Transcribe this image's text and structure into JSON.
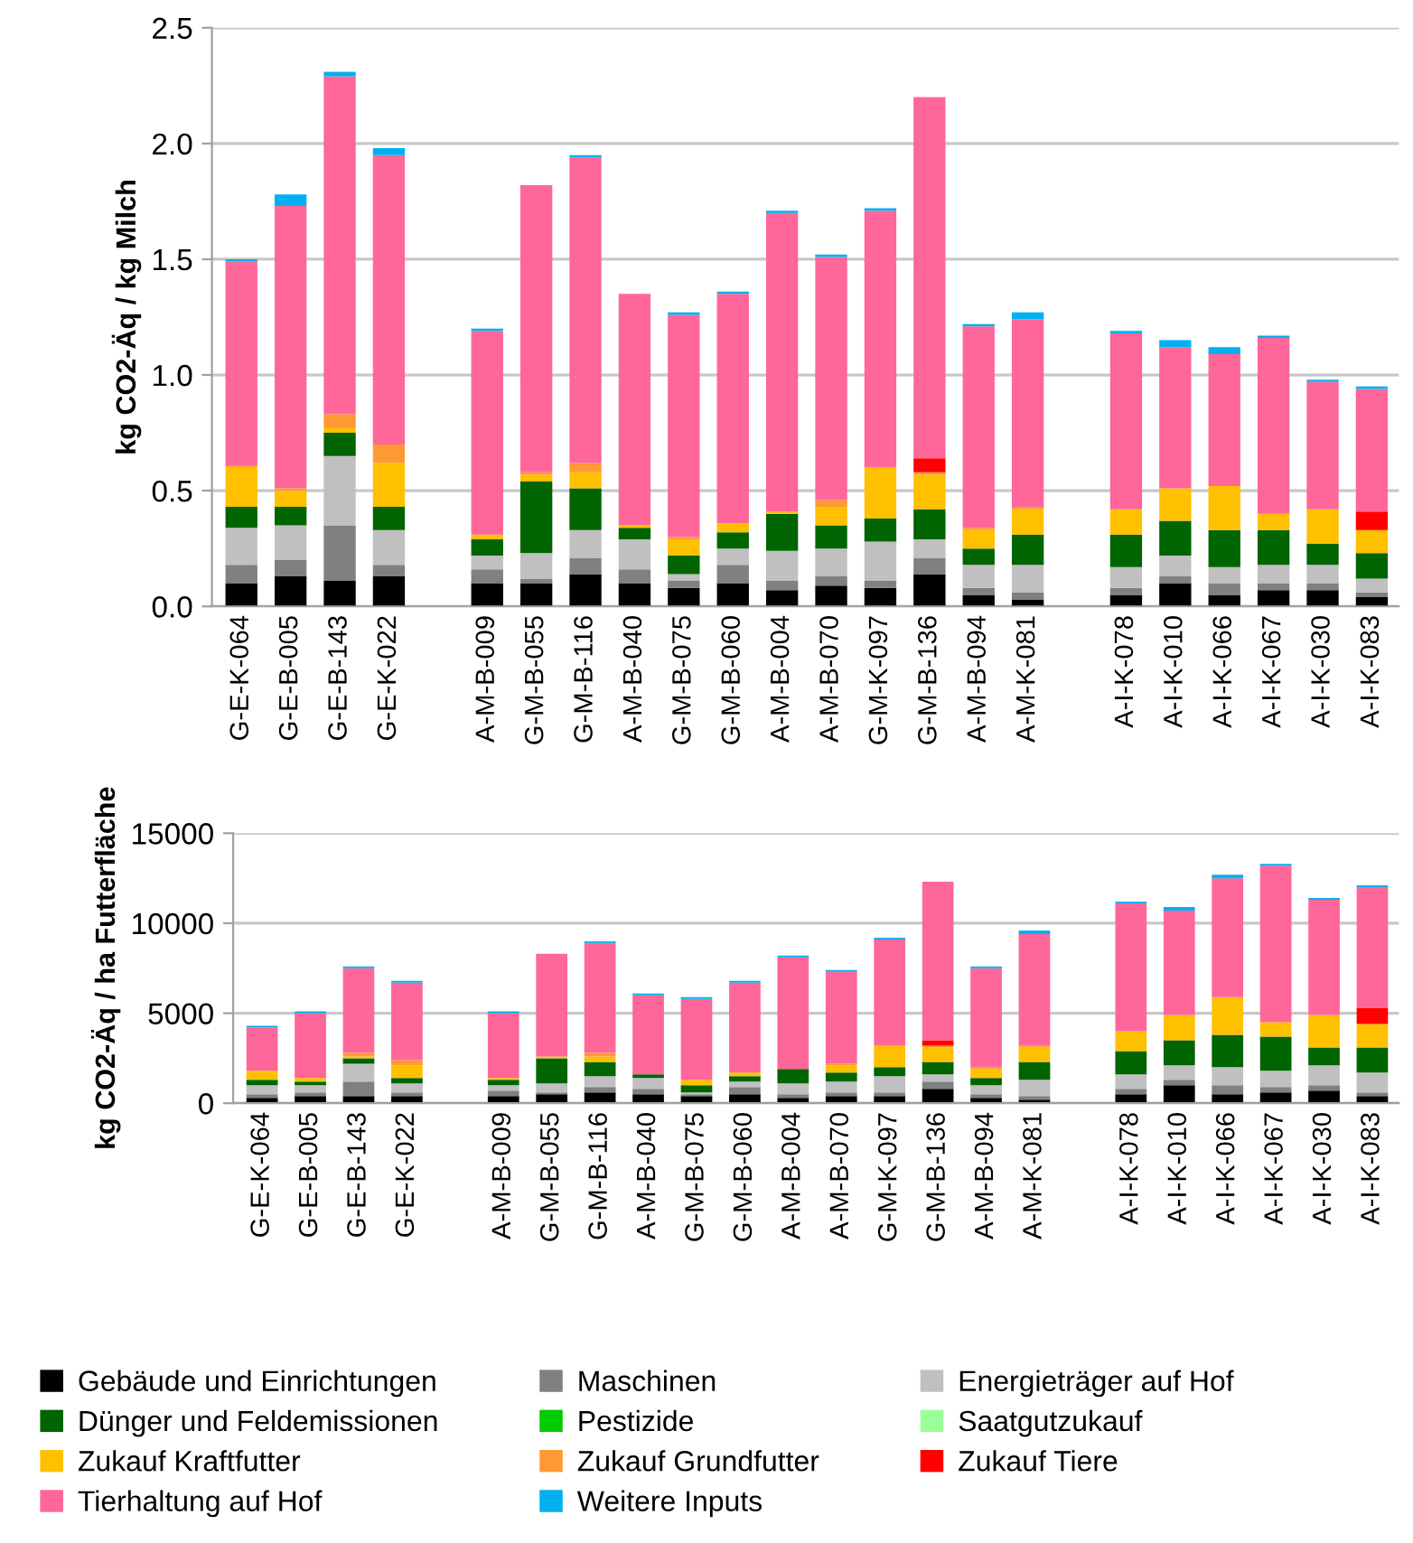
{
  "chart_data": [
    {
      "type": "bar",
      "stacked": true,
      "ylabel": "kg CO2-Äq / kg Milch",
      "grid": "y",
      "categories": [
        "G-E-K-064",
        "G-E-B-005",
        "G-E-B-143",
        "G-E-K-022",
        null,
        "A-M-B-009",
        "G-M-B-055",
        "G-M-B-116",
        "A-M-B-040",
        "G-M-B-075",
        "G-M-B-060",
        "A-M-B-004",
        "A-M-B-070",
        "G-M-K-097",
        "G-M-B-136",
        "A-M-B-094",
        "A-M-K-081",
        null,
        "A-I-K-078",
        "A-I-K-010",
        "A-I-K-066",
        "A-I-K-067",
        "A-I-K-030",
        "A-I-K-083"
      ],
      "ylim": [
        0,
        2.5
      ],
      "yticks": [
        {
          "value": 0,
          "label": "0.0"
        },
        {
          "value": 0.5,
          "label": "0.5"
        },
        {
          "value": 1,
          "label": "1.0"
        },
        {
          "value": 1.5,
          "label": "1.5"
        },
        {
          "value": 2,
          "label": "2.0"
        },
        {
          "value": 2.5,
          "label": "2.5"
        }
      ],
      "series": [
        {
          "color": "#000000",
          "values": [
            0.1,
            0.13,
            0.11,
            0.13,
            null,
            0.1,
            0.1,
            0.14,
            0.1,
            0.08,
            0.1,
            0.07,
            0.09,
            0.08,
            0.14,
            0.05,
            0.03,
            null,
            0.05,
            0.1,
            0.05,
            0.07,
            0.07,
            0.04
          ]
        },
        {
          "color": "#808080",
          "values": [
            0.08,
            0.07,
            0.24,
            0.05,
            null,
            0.06,
            0.02,
            0.07,
            0.06,
            0.03,
            0.08,
            0.04,
            0.04,
            0.03,
            0.07,
            0.03,
            0.03,
            null,
            0.03,
            0.03,
            0.05,
            0.03,
            0.03,
            0.02
          ]
        },
        {
          "color": "#c0c0c0",
          "values": [
            0.16,
            0.15,
            0.3,
            0.15,
            null,
            0.06,
            0.11,
            0.12,
            0.13,
            0.03,
            0.07,
            0.13,
            0.12,
            0.17,
            0.08,
            0.1,
            0.12,
            null,
            0.09,
            0.09,
            0.07,
            0.08,
            0.08,
            0.06
          ]
        },
        {
          "color": "#006400",
          "values": [
            0.09,
            0.08,
            0.1,
            0.1,
            null,
            0.07,
            0.31,
            0.18,
            0.05,
            0.08,
            0.07,
            0.16,
            0.1,
            0.1,
            0.13,
            0.07,
            0.13,
            null,
            0.14,
            0.15,
            0.16,
            0.15,
            0.09,
            0.11
          ]
        },
        {
          "color": "#00cc00",
          "values": [
            0,
            0,
            0,
            0,
            null,
            0,
            0,
            0,
            0,
            0,
            0,
            0,
            0,
            0,
            0,
            0,
            0,
            null,
            0,
            0,
            0,
            0,
            0,
            0
          ]
        },
        {
          "color": "#99ff99",
          "values": [
            0,
            0,
            0,
            0,
            null,
            0,
            0,
            0,
            0,
            0,
            0,
            0,
            0,
            0,
            0,
            0,
            0,
            null,
            0,
            0,
            0,
            0,
            0,
            0
          ]
        },
        {
          "color": "#ffc000",
          "values": [
            0.17,
            0.07,
            0.02,
            0.19,
            null,
            0.02,
            0.03,
            0.07,
            0.01,
            0.07,
            0.04,
            0.01,
            0.08,
            0.22,
            0.15,
            0.08,
            0.11,
            null,
            0.11,
            0.14,
            0.19,
            0.07,
            0.15,
            0.1
          ]
        },
        {
          "color": "#ff9933",
          "values": [
            0.01,
            0.01,
            0.06,
            0.08,
            null,
            0,
            0.01,
            0.04,
            0,
            0.01,
            0,
            0,
            0.03,
            0,
            0.01,
            0.01,
            0.01,
            null,
            0,
            0,
            0,
            0,
            0,
            0
          ]
        },
        {
          "color": "#ff0000",
          "values": [
            0,
            0,
            0,
            0,
            null,
            0,
            0,
            0,
            0,
            0,
            0,
            0,
            0,
            0,
            0.06,
            0,
            0,
            null,
            0,
            0,
            0,
            0,
            0,
            0.08
          ]
        },
        {
          "color": "#ff6699",
          "values": [
            0.88,
            1.22,
            1.46,
            1.25,
            null,
            0.88,
            1.24,
            1.32,
            1.0,
            0.96,
            0.99,
            1.29,
            1.05,
            1.11,
            1.56,
            0.87,
            0.81,
            null,
            0.76,
            0.61,
            0.57,
            0.76,
            0.55,
            0.53
          ]
        },
        {
          "color": "#00b0f0",
          "values": [
            0.01,
            0.05,
            0.02,
            0.03,
            null,
            0.01,
            0,
            0.01,
            0,
            0.01,
            0.01,
            0.01,
            0.01,
            0.01,
            0,
            0.01,
            0.03,
            null,
            0.01,
            0.03,
            0.03,
            0.01,
            0.01,
            0.01
          ]
        }
      ]
    },
    {
      "type": "bar",
      "stacked": true,
      "ylabel": "kg CO2-Äq / ha Futterfläche",
      "grid": "y",
      "legend": "bottom",
      "categories": [
        "G-E-K-064",
        "G-E-B-005",
        "G-E-B-143",
        "G-E-K-022",
        null,
        "A-M-B-009",
        "G-M-B-055",
        "G-M-B-116",
        "A-M-B-040",
        "G-M-B-075",
        "G-M-B-060",
        "A-M-B-004",
        "A-M-B-070",
        "G-M-K-097",
        "G-M-B-136",
        "A-M-B-094",
        "A-M-K-081",
        null,
        "A-I-K-078",
        "A-I-K-010",
        "A-I-K-066",
        "A-I-K-067",
        "A-I-K-030",
        "A-I-K-083"
      ],
      "ylim": [
        0,
        15000
      ],
      "yticks": [
        0,
        5000,
        10000,
        15000
      ],
      "series": [
        {
          "name": "Gebäude und Einrichtungen",
          "color": "#000000",
          "values": [
            300,
            400,
            400,
            400,
            null,
            400,
            500,
            600,
            500,
            400,
            500,
            300,
            400,
            400,
            800,
            300,
            200,
            null,
            500,
            1000,
            500,
            600,
            700,
            400
          ]
        },
        {
          "name": "Maschinen",
          "color": "#808080",
          "values": [
            200,
            200,
            800,
            200,
            null,
            300,
            100,
            300,
            300,
            100,
            400,
            200,
            200,
            200,
            400,
            200,
            200,
            null,
            300,
            300,
            500,
            300,
            300,
            200
          ]
        },
        {
          "name": "Energieträger auf Hof",
          "color": "#c0c0c0",
          "values": [
            500,
            400,
            1000,
            500,
            null,
            300,
            500,
            600,
            600,
            100,
            300,
            600,
            600,
            900,
            400,
            500,
            900,
            null,
            800,
            800,
            1000,
            900,
            1100,
            1100
          ]
        },
        {
          "name": "Dünger und Feldemissionen",
          "color": "#006400",
          "values": [
            300,
            200,
            300,
            300,
            null,
            300,
            1400,
            800,
            200,
            400,
            300,
            800,
            500,
            500,
            700,
            400,
            1000,
            null,
            1300,
            1400,
            1800,
            1900,
            1000,
            1400
          ]
        },
        {
          "name": "Pestizide",
          "color": "#00cc00",
          "values": [
            0,
            0,
            0,
            0,
            null,
            0,
            0,
            0,
            0,
            0,
            0,
            0,
            0,
            0,
            0,
            0,
            0,
            null,
            0,
            0,
            0,
            0,
            0,
            0
          ]
        },
        {
          "name": "Saatgutzukauf",
          "color": "#99ff99",
          "values": [
            0,
            0,
            0,
            0,
            null,
            0,
            0,
            0,
            0,
            0,
            0,
            0,
            0,
            0,
            0,
            0,
            0,
            null,
            0,
            0,
            0,
            0,
            0,
            0
          ]
        },
        {
          "name": "Zukauf Kraftfutter",
          "color": "#ffc000",
          "values": [
            500,
            200,
            100,
            700,
            null,
            100,
            100,
            300,
            0,
            300,
            200,
            0,
            400,
            1200,
            800,
            500,
            800,
            null,
            1100,
            1400,
            2100,
            800,
            1800,
            1300
          ]
        },
        {
          "name": "Zukauf Grundfutter",
          "color": "#ff9933",
          "values": [
            0,
            0,
            200,
            300,
            null,
            0,
            0,
            200,
            0,
            0,
            0,
            0,
            100,
            0,
            100,
            100,
            100,
            null,
            0,
            0,
            0,
            0,
            0,
            0
          ]
        },
        {
          "name": "Zukauf Tiere",
          "color": "#ff0000",
          "values": [
            0,
            0,
            0,
            0,
            null,
            0,
            0,
            0,
            0,
            0,
            0,
            0,
            0,
            0,
            300,
            0,
            0,
            null,
            0,
            0,
            0,
            0,
            0,
            900
          ]
        },
        {
          "name": "Tierhaltung auf Hof",
          "color": "#ff6699",
          "values": [
            2400,
            3600,
            4700,
            4300,
            null,
            3600,
            5700,
            6100,
            4400,
            4500,
            5000,
            6200,
            5100,
            5900,
            8800,
            5500,
            6200,
            null,
            7100,
            5800,
            6600,
            8700,
            6400,
            6700
          ]
        },
        {
          "name": "Weitere Inputs",
          "color": "#00b0f0",
          "values": [
            100,
            100,
            100,
            100,
            null,
            100,
            0,
            100,
            100,
            100,
            100,
            100,
            100,
            100,
            0,
            100,
            200,
            null,
            100,
            200,
            200,
            100,
            100,
            100
          ]
        }
      ]
    }
  ]
}
